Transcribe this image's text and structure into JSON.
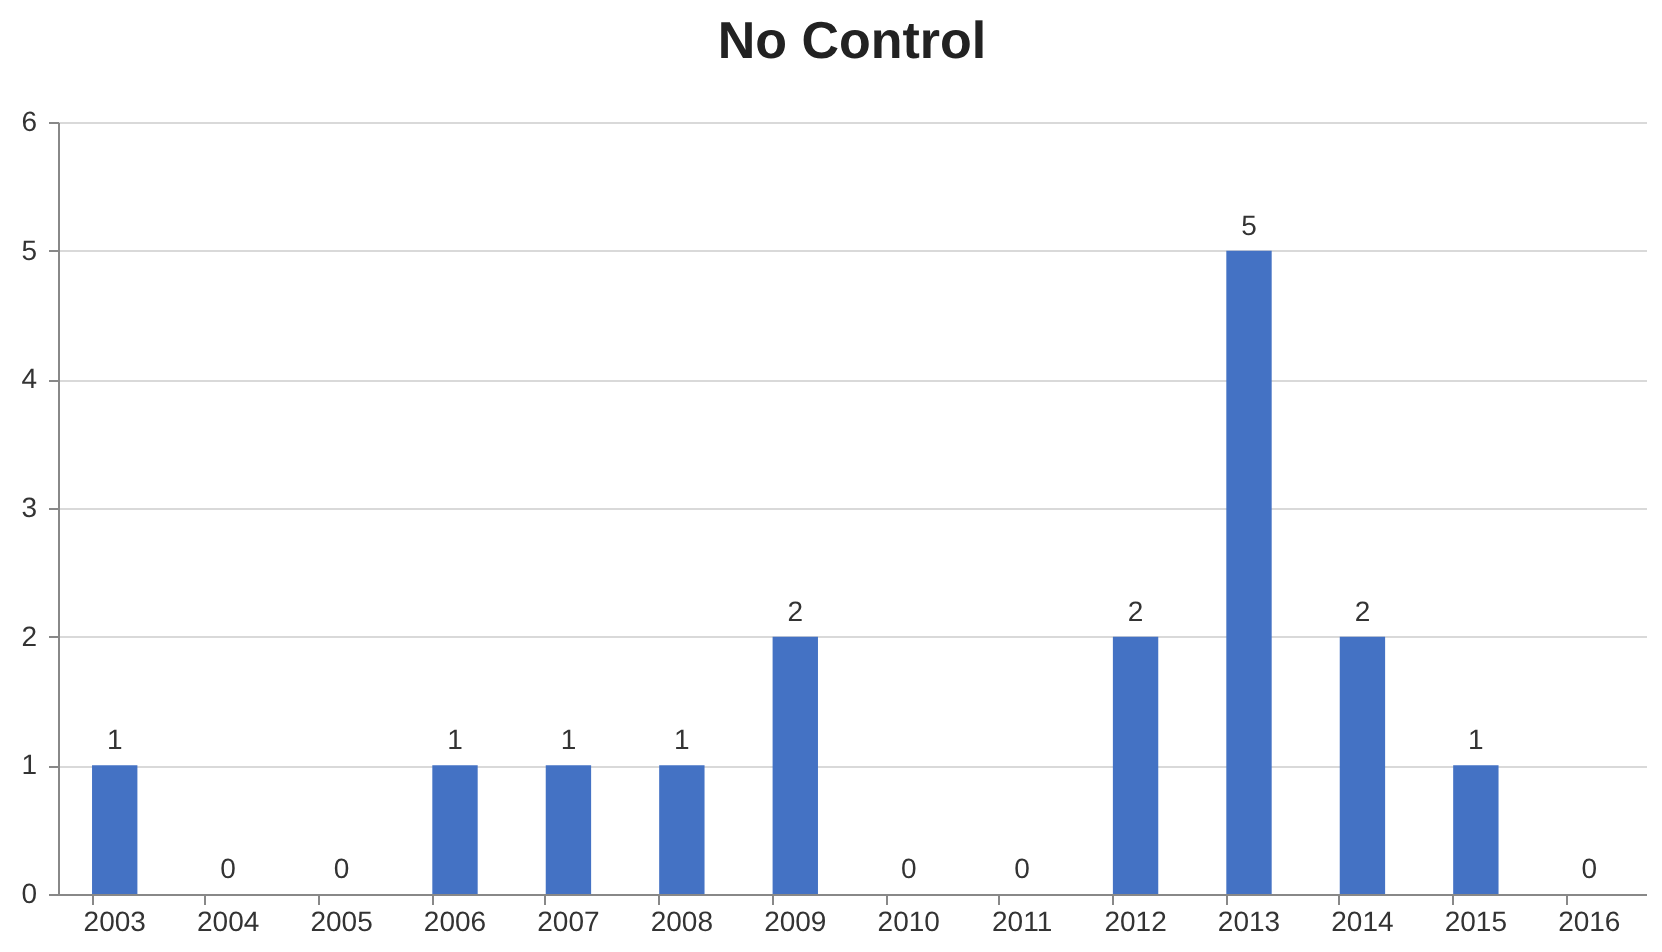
{
  "chart_data": {
    "type": "bar",
    "title": "No Control",
    "categories": [
      "2003",
      "2004",
      "2005",
      "2006",
      "2007",
      "2008",
      "2009",
      "2010",
      "2011",
      "2012",
      "2013",
      "2014",
      "2015",
      "2016"
    ],
    "values": [
      1,
      0,
      0,
      1,
      1,
      1,
      2,
      0,
      0,
      2,
      5,
      2,
      1,
      0
    ],
    "color": "#4472c4",
    "ylim": [
      0,
      6
    ],
    "yticks": [
      0,
      1,
      2,
      3,
      4,
      5,
      6
    ],
    "grid": "y",
    "data_labels": true
  }
}
